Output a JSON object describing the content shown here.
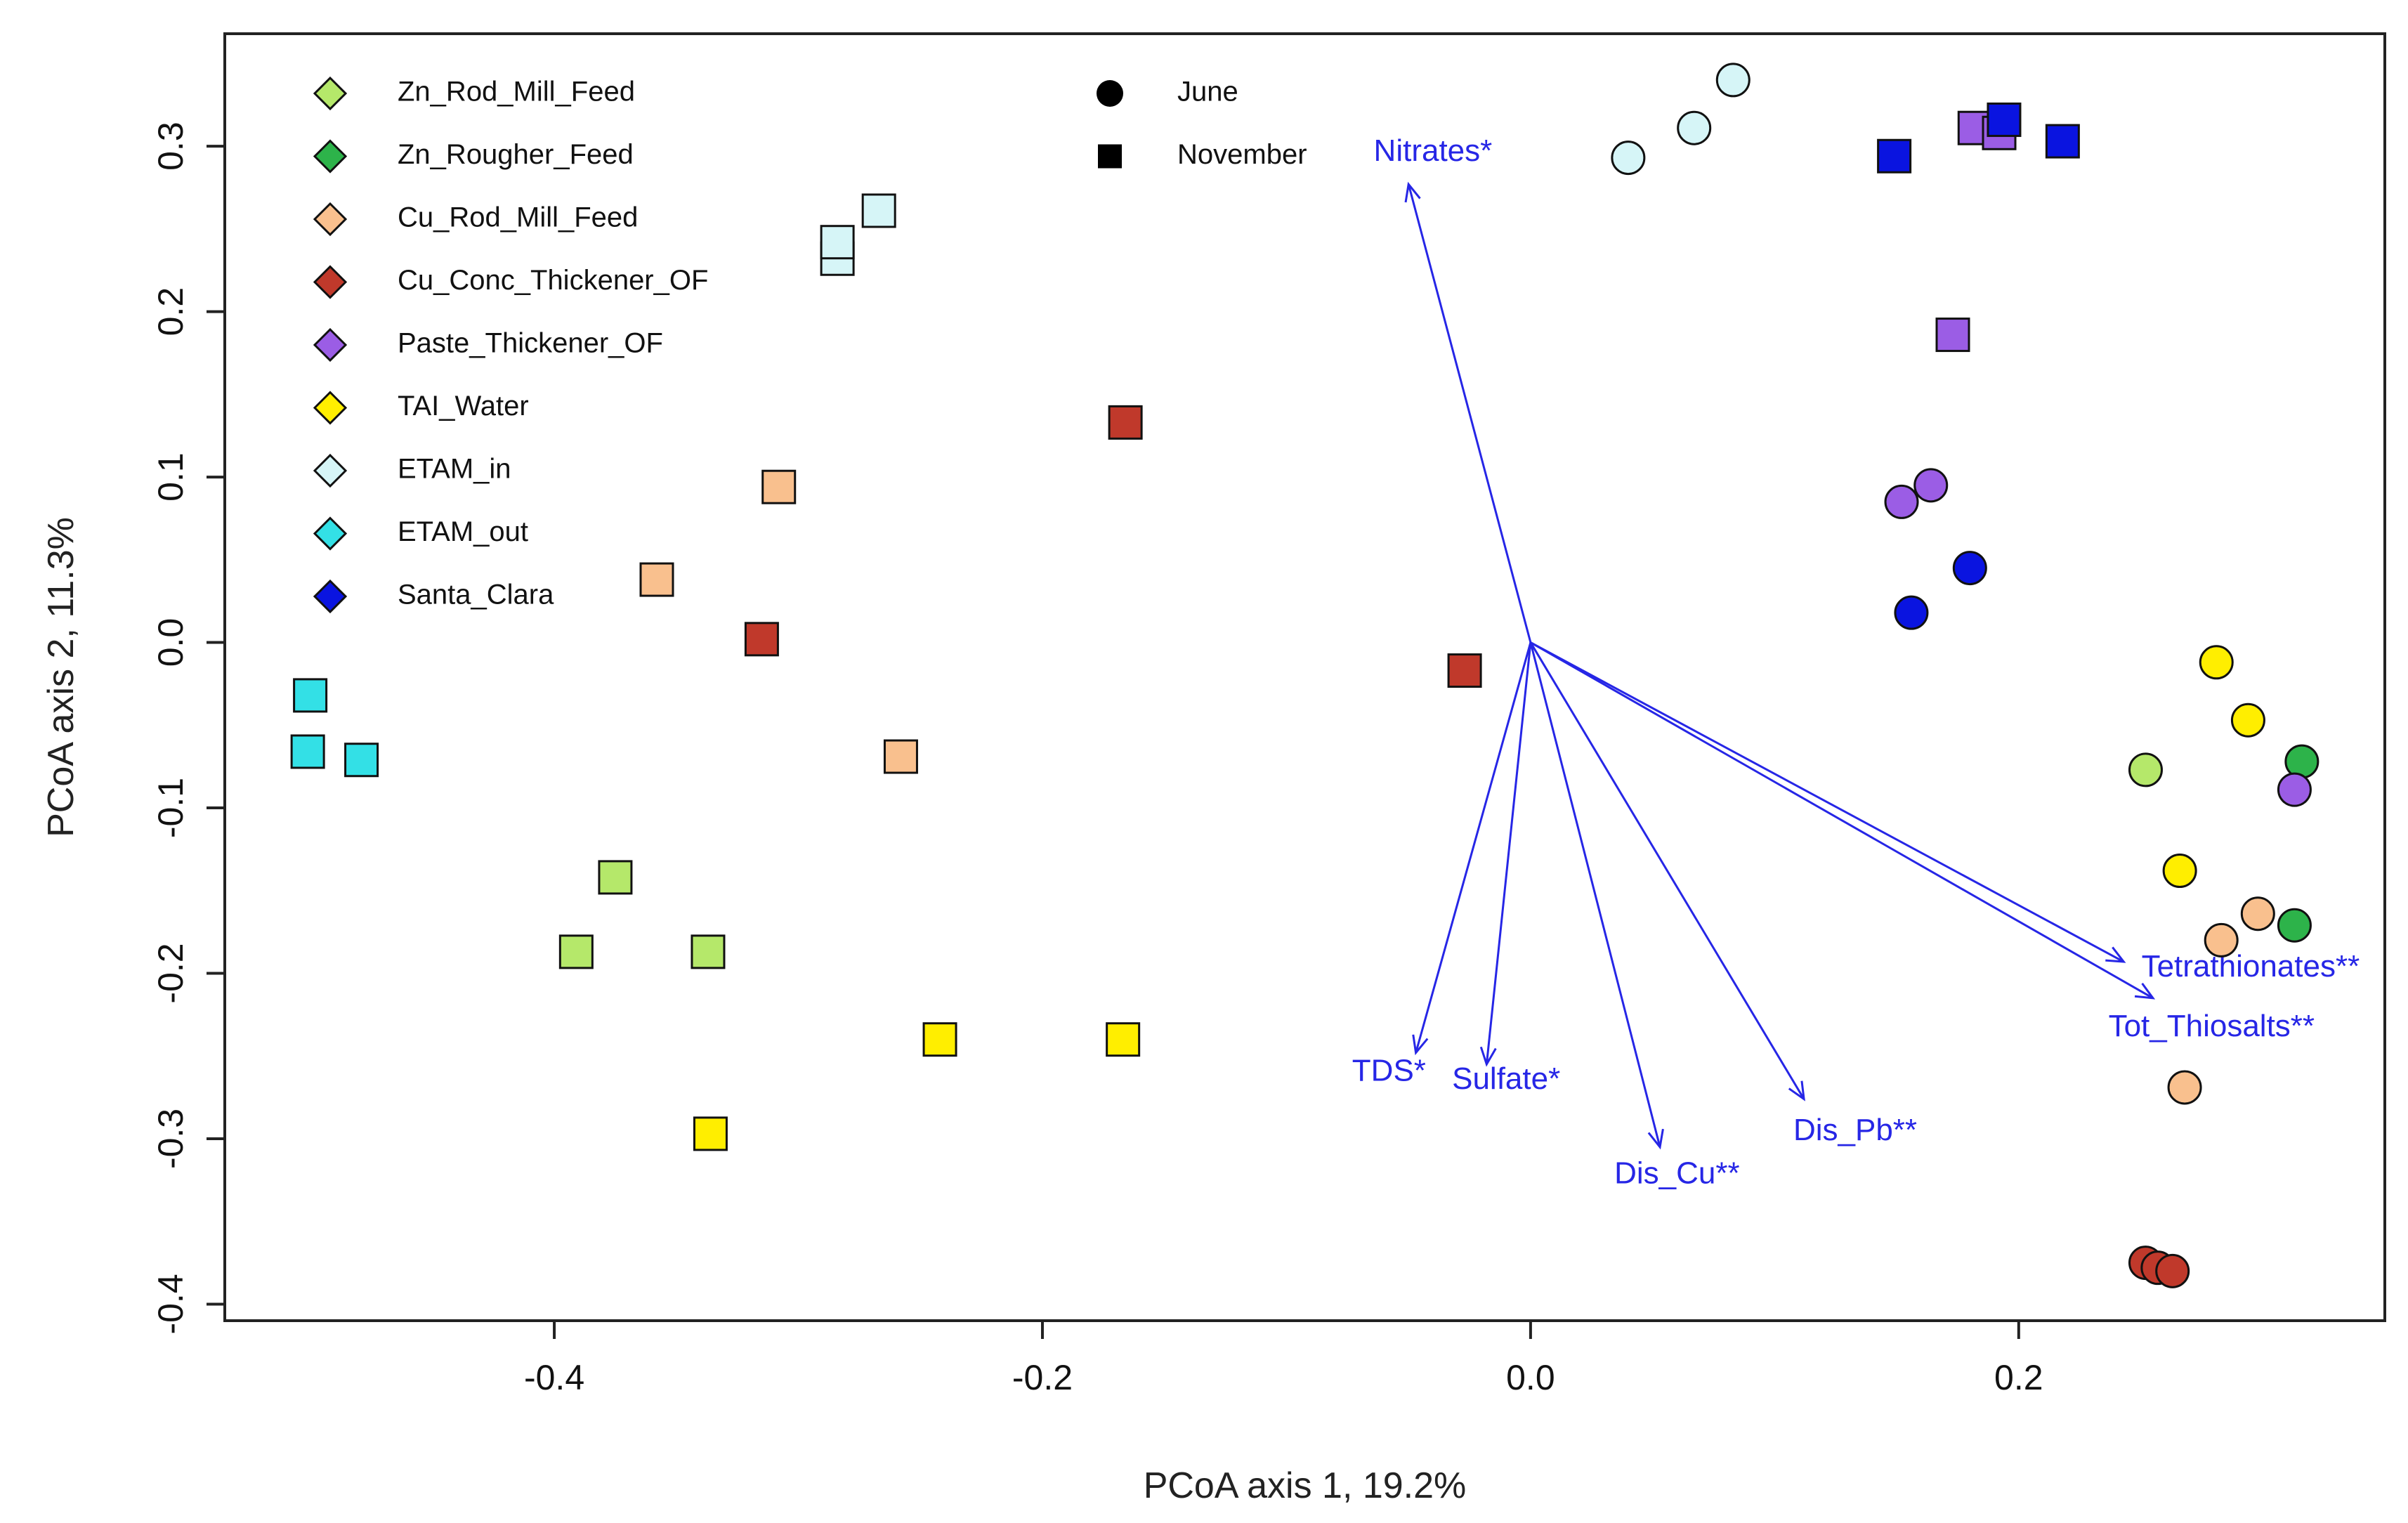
{
  "chart_data": {
    "type": "scatter",
    "title": "",
    "xlabel": "PCoA axis 1, 19.2%",
    "ylabel": "PCoA axis 2, 11.3%",
    "xlim": [
      -0.535,
      0.35
    ],
    "ylim": [
      -0.41,
      0.368
    ],
    "grid": false,
    "x_ticks": [
      -0.4,
      -0.2,
      0.0,
      0.2
    ],
    "x_tick_labels": [
      "-0.4",
      "-0.2",
      "0.0",
      "0.2"
    ],
    "y_ticks": [
      -0.4,
      -0.3,
      -0.2,
      -0.1,
      0.0,
      0.1,
      0.2,
      0.3
    ],
    "y_tick_labels": [
      "-0.4",
      "-0.3",
      "-0.2",
      "-0.1",
      "0.0",
      "0.1",
      "0.2",
      "0.3"
    ],
    "groups": [
      {
        "name": "Zn_Rod_Mill_Feed",
        "color": "#b5e86a"
      },
      {
        "name": "Zn_Rougher_Feed",
        "color": "#2db34a"
      },
      {
        "name": "Cu_Rod_Mill_Feed",
        "color": "#f9c08e"
      },
      {
        "name": "Cu_Conc_Thickener_OF",
        "color": "#c0392b"
      },
      {
        "name": "Paste_Thickener_OF",
        "color": "#9b5de5"
      },
      {
        "name": "TAI_Water",
        "color": "#ffee00"
      },
      {
        "name": "ETAM_in",
        "color": "#d6f5f7"
      },
      {
        "name": "ETAM_out",
        "color": "#33e0e6"
      },
      {
        "name": "Santa_Clara",
        "color": "#0a14e0"
      }
    ],
    "shape_legend": [
      {
        "name": "June",
        "shape": "circle"
      },
      {
        "name": "November",
        "shape": "square"
      }
    ],
    "series": [
      {
        "group": "Zn_Rod_Mill_Feed",
        "month": "June",
        "x": [
          0.252
        ],
        "y": [
          -0.077
        ]
      },
      {
        "group": "Zn_Rod_Mill_Feed",
        "month": "November",
        "x": [
          -0.375,
          -0.391,
          -0.337
        ],
        "y": [
          -0.142,
          -0.187,
          -0.187
        ]
      },
      {
        "group": "Zn_Rougher_Feed",
        "month": "June",
        "x": [
          0.316,
          0.313
        ],
        "y": [
          -0.072,
          -0.171
        ]
      },
      {
        "group": "Cu_Rod_Mill_Feed",
        "month": "June",
        "x": [
          0.298,
          0.283,
          0.268
        ],
        "y": [
          -0.164,
          -0.18,
          -0.269
        ]
      },
      {
        "group": "Cu_Rod_Mill_Feed",
        "month": "November",
        "x": [
          -0.308,
          -0.358,
          -0.258
        ],
        "y": [
          0.094,
          0.038,
          -0.069
        ]
      },
      {
        "group": "Cu_Conc_Thickener_OF",
        "month": "June",
        "x": [
          0.252,
          0.257,
          0.263
        ],
        "y": [
          -0.375,
          -0.378,
          -0.38
        ]
      },
      {
        "group": "Cu_Conc_Thickener_OF",
        "month": "November",
        "x": [
          -0.166,
          -0.315,
          -0.027
        ],
        "y": [
          0.133,
          0.002,
          -0.017
        ]
      },
      {
        "group": "Paste_Thickener_OF",
        "month": "June",
        "x": [
          0.152,
          0.164,
          0.313
        ],
        "y": [
          0.085,
          0.095,
          -0.089
        ]
      },
      {
        "group": "Paste_Thickener_OF",
        "month": "November",
        "x": [
          0.173,
          0.182,
          0.192
        ],
        "y": [
          0.186,
          0.311,
          0.308
        ]
      },
      {
        "group": "TAI_Water",
        "month": "June",
        "x": [
          0.281,
          0.294,
          0.266
        ],
        "y": [
          -0.012,
          -0.047,
          -0.138
        ]
      },
      {
        "group": "TAI_Water",
        "month": "November",
        "x": [
          -0.242,
          -0.167,
          -0.336
        ],
        "y": [
          -0.24,
          -0.24,
          -0.297
        ]
      },
      {
        "group": "ETAM_in",
        "month": "June",
        "x": [
          0.04,
          0.067,
          0.083
        ],
        "y": [
          0.293,
          0.311,
          0.34
        ]
      },
      {
        "group": "ETAM_in",
        "month": "November",
        "x": [
          -0.284,
          -0.267,
          -0.284
        ],
        "y": [
          0.232,
          0.261,
          0.242
        ]
      },
      {
        "group": "ETAM_out",
        "month": "November",
        "x": [
          -0.5,
          -0.501,
          -0.479
        ],
        "y": [
          -0.032,
          -0.066,
          -0.071
        ]
      },
      {
        "group": "Santa_Clara",
        "month": "June",
        "x": [
          0.156,
          0.18
        ],
        "y": [
          0.018,
          0.045
        ]
      },
      {
        "group": "Santa_Clara",
        "month": "November",
        "x": [
          0.149,
          0.194,
          0.218
        ],
        "y": [
          0.294,
          0.316,
          0.303
        ]
      }
    ],
    "vectors": [
      {
        "label": "Nitrates*",
        "x": -0.05,
        "y": 0.277,
        "label_x": -0.04,
        "label_y": 0.296
      },
      {
        "label": "TDS*",
        "x": -0.047,
        "y": -0.248,
        "label_x": -0.058,
        "label_y": -0.26
      },
      {
        "label": "Sulfate*",
        "x": -0.018,
        "y": -0.255,
        "label_x": -0.01,
        "label_y": -0.265
      },
      {
        "label": "Dis_Cu**",
        "x": 0.053,
        "y": -0.305,
        "label_x": 0.06,
        "label_y": -0.322
      },
      {
        "label": "Dis_Pb**",
        "x": 0.112,
        "y": -0.276,
        "label_x": 0.133,
        "label_y": -0.296
      },
      {
        "label": "Tetrathionates**",
        "x": 0.243,
        "y": -0.193,
        "label_x": 0.295,
        "label_y": -0.197
      },
      {
        "label": "Tot_Thiosalts**",
        "x": 0.255,
        "y": -0.215,
        "label_x": 0.279,
        "label_y": -0.233
      }
    ],
    "vector_color": "#2626e6"
  }
}
